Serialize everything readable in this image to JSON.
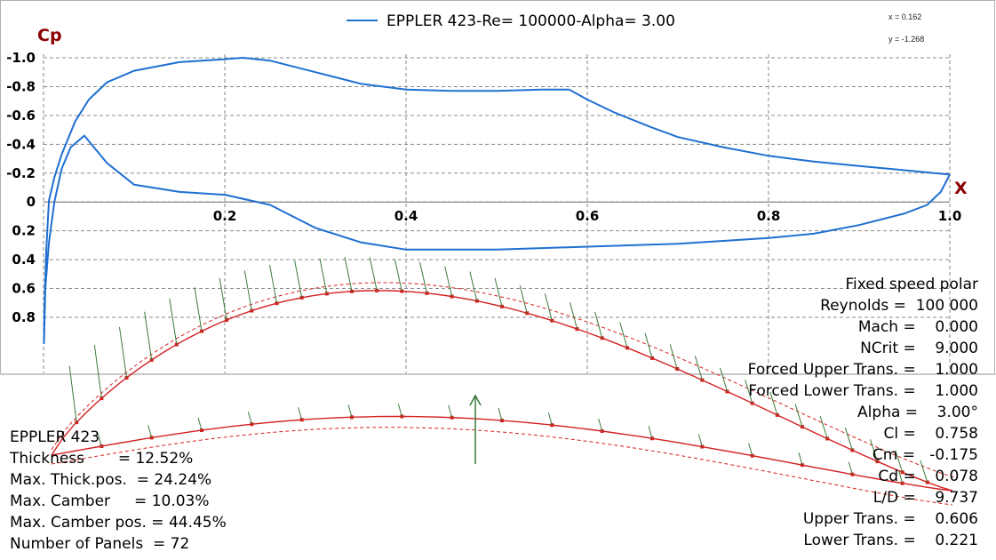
{
  "chart_data": {
    "type": "line",
    "title": "EPPLER 423-Re=  100000-Alpha= 3.00",
    "xlabel": "X",
    "ylabel": "Cp",
    "xlim": [
      0,
      1.0
    ],
    "ylim": [
      -1.0,
      0.8
    ],
    "y_inverted": true,
    "grid": true,
    "legend_position": "top-center",
    "x_ticks": [
      {
        "value": 0.2,
        "label": "0.2"
      },
      {
        "value": 0.4,
        "label": "0.4"
      },
      {
        "value": 0.6,
        "label": "0.6"
      },
      {
        "value": 0.8,
        "label": "0.8"
      },
      {
        "value": 1.0,
        "label": "1.0"
      }
    ],
    "y_ticks": [
      {
        "value": -1.0,
        "label": "-1.0"
      },
      {
        "value": -0.8,
        "label": "-0.8"
      },
      {
        "value": -0.6,
        "label": "-0.6"
      },
      {
        "value": -0.4,
        "label": "-0.4"
      },
      {
        "value": -0.2,
        "label": "-0.2"
      },
      {
        "value": 0.0,
        "label": "0"
      },
      {
        "value": 0.2,
        "label": "0.2"
      },
      {
        "value": 0.4,
        "label": "0.4"
      },
      {
        "value": 0.6,
        "label": "0.6"
      },
      {
        "value": 0.8,
        "label": "0.8"
      }
    ],
    "series": [
      {
        "name": "EPPLER 423-Re=  100000-Alpha= 3.00",
        "color": "#1f6fd1",
        "x": [
          1.0,
          0.95,
          0.9,
          0.85,
          0.8,
          0.75,
          0.7,
          0.67,
          0.63,
          0.6,
          0.58,
          0.55,
          0.5,
          0.45,
          0.4,
          0.35,
          0.3,
          0.25,
          0.22,
          0.2,
          0.15,
          0.1,
          0.07,
          0.05,
          0.035,
          0.02,
          0.012,
          0.006,
          0.003,
          0.001,
          0.0005,
          0.002,
          0.006,
          0.012,
          0.02,
          0.03,
          0.045,
          0.07,
          0.1,
          0.15,
          0.2,
          0.25,
          0.3,
          0.35,
          0.4,
          0.45,
          0.5,
          0.55,
          0.6,
          0.65,
          0.7,
          0.75,
          0.8,
          0.85,
          0.9,
          0.95,
          0.975,
          0.99,
          1.0
        ],
        "y": [
          -0.19,
          -0.22,
          -0.25,
          -0.28,
          -0.32,
          -0.38,
          -0.45,
          -0.52,
          -0.62,
          -0.71,
          -0.78,
          -0.78,
          -0.77,
          -0.77,
          -0.78,
          -0.82,
          -0.9,
          -0.98,
          -1.0,
          -0.99,
          -0.97,
          -0.91,
          -0.83,
          -0.71,
          -0.56,
          -0.33,
          -0.17,
          -0.01,
          0.33,
          0.73,
          0.98,
          0.6,
          0.28,
          0.0,
          -0.23,
          -0.38,
          -0.46,
          -0.27,
          -0.12,
          -0.07,
          -0.05,
          0.02,
          0.18,
          0.28,
          0.33,
          0.33,
          0.33,
          0.32,
          0.31,
          0.3,
          0.29,
          0.27,
          0.25,
          0.22,
          0.16,
          0.08,
          0.02,
          -0.07,
          -0.19
        ]
      }
    ],
    "cursor_readout": {
      "x": "x =   0.162",
      "y": "y =   -1.268"
    },
    "airfoil_info": [
      "EPPLER 423",
      "Thickness       = 12.52%",
      "Max. Thick.pos.  = 24.24%",
      "Max. Camber     = 10.03%",
      "Max. Camber pos. = 44.45%",
      "Number of Panels  = 72"
    ],
    "polar_info": [
      "Fixed speed polar",
      "Reynolds =  100 000",
      "Mach =    0.000",
      "NCrit =    9.000",
      "Forced Upper Trans. =    1.000",
      "Forced Lower Trans. =    1.000",
      "Alpha =    3.00°",
      "Cl =    0.758",
      "Cm =   -0.175",
      "Cd =    0.078",
      "L/D =    9.737",
      "Upper Trans. =    0.606",
      "Lower Trans. =    0.221"
    ],
    "colors": {
      "curve": "#1f6fd1",
      "axis_title": "#8b0000",
      "airfoil": "#d42020",
      "pressure_arrows": "#3a7a3a",
      "grid": "#888888"
    }
  }
}
